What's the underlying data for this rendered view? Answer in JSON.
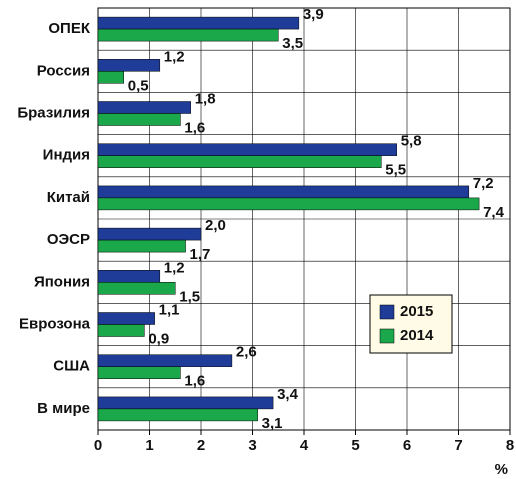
{
  "chart_data": {
    "type": "hbar",
    "categories": [
      "ОПЕК",
      "Россия",
      "Бразилия",
      "Индия",
      "Китай",
      "ОЭСР",
      "Япония",
      "Еврозона",
      "США",
      "В мире"
    ],
    "series": [
      {
        "name": "2015",
        "color": "#1f3c98",
        "values": [
          3.9,
          1.2,
          1.8,
          5.8,
          7.2,
          2.0,
          1.2,
          1.1,
          2.6,
          3.4
        ],
        "value_labels": [
          "3,9",
          "1,2",
          "1,8",
          "5,8",
          "7,2",
          "2,0",
          "1,2",
          "1,1",
          "2,6",
          "3,4"
        ]
      },
      {
        "name": "2014",
        "color": "#1ba84b",
        "values": [
          3.5,
          0.5,
          1.6,
          5.5,
          7.4,
          1.7,
          1.5,
          0.9,
          1.6,
          3.1
        ],
        "value_labels": [
          "3,5",
          "0,5",
          "1,6",
          "5,5",
          "7,4",
          "1,7",
          "1,5",
          "0,9",
          "1,6",
          "3,1"
        ]
      }
    ],
    "xlabel": "%",
    "xlim": [
      0,
      8
    ],
    "xticks": [
      0,
      1,
      2,
      3,
      4,
      5,
      6,
      7,
      8
    ],
    "grid": true,
    "legend": "lower right"
  }
}
